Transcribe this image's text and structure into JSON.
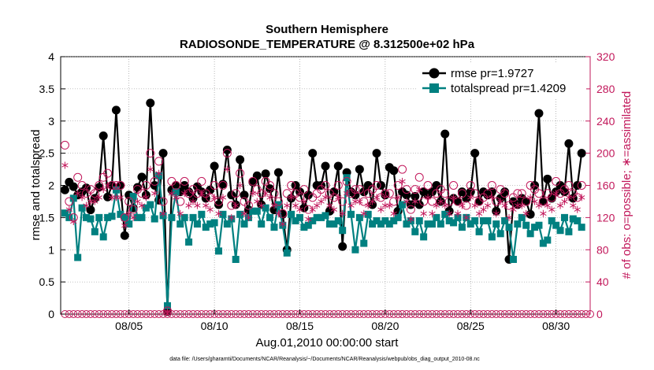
{
  "chart_data": {
    "type": "line",
    "title": "Southern Hemisphere",
    "subtitle": "RADIOSONDE_TEMPERATURE @ 8.312500e+02 hPa",
    "xlabel": "Aug.01,2010 00:00:00 start",
    "ylabel": "rmse and totalspread",
    "ylabel_right": "# of obs: o=possible; ∗=assimilated",
    "footnote": "data file: /Users/gharamti/Documents/NCAR/Reanalysis/~/Documents/NCAR/Reanalysis/webpub/obs_diag_output_2010-08.nc",
    "xlim": [
      1,
      32
    ],
    "ylim": [
      0,
      4
    ],
    "ylim_right": [
      0,
      320
    ],
    "x_ticks": [
      {
        "x": 5,
        "label": "08/05"
      },
      {
        "x": 10,
        "label": "08/10"
      },
      {
        "x": 15,
        "label": "08/15"
      },
      {
        "x": 20,
        "label": "08/20"
      },
      {
        "x": 25,
        "label": "08/25"
      },
      {
        "x": 30,
        "label": "08/30"
      }
    ],
    "y_ticks": [
      "0",
      "0.5",
      "1",
      "1.5",
      "2",
      "2.5",
      "3",
      "3.5",
      "4"
    ],
    "y_ticks_right": [
      "0",
      "40",
      "80",
      "120",
      "160",
      "200",
      "240",
      "280",
      "320"
    ],
    "legend": [
      {
        "name": "rmse pr=1.9727",
        "color": "#000000"
      },
      {
        "name": "totalspread pr=1.4209",
        "color": "#008080"
      }
    ],
    "legend_position": "top-right",
    "series": [
      {
        "name": "rmse",
        "color": "#000000",
        "marker": "circle",
        "values": [
          1.93,
          2.05,
          1.98,
          1.85,
          1.9,
          1.96,
          1.62,
          1.8,
          1.97,
          2.77,
          1.82,
          2.0,
          3.17,
          2.0,
          1.22,
          1.85,
          1.65,
          1.97,
          2.13,
          1.85,
          3.28,
          2.0,
          1.77,
          2.5,
          0.04,
          1.93,
          2.0,
          1.9,
          2.0,
          1.9,
          1.8,
          1.98,
          1.9,
          1.8,
          1.93,
          2.3,
          1.7,
          2.02,
          2.55,
          1.85,
          1.7,
          2.4,
          1.85,
          1.62,
          2.05,
          2.15,
          1.7,
          2.18,
          1.95,
          1.62,
          2.2,
          1.55,
          1.0,
          1.8,
          2.0,
          1.9,
          1.65,
          1.85,
          2.5,
          2.0,
          2.0,
          2.3,
          1.6,
          1.9,
          2.3,
          1.05,
          2.2,
          1.9,
          1.85,
          2.25,
          1.9,
          2.0,
          1.7,
          2.5,
          2.0,
          1.85,
          2.28,
          2.23,
          1.6,
          1.9,
          1.85,
          1.7,
          1.83,
          1.7,
          1.9,
          1.85,
          1.9,
          2.0,
          1.75,
          2.8,
          1.6,
          1.8,
          1.75,
          1.9,
          1.8,
          1.9,
          2.5,
          1.75,
          1.9,
          1.85,
          1.9,
          1.6,
          1.8,
          1.9,
          0.85,
          1.75,
          1.7,
          1.8,
          1.75,
          1.55,
          2.0,
          3.12,
          1.75,
          2.1,
          1.8,
          1.9,
          2.0,
          1.9,
          2.65,
          1.8,
          2.0,
          2.5
        ],
        "marker_interval_days": 0.25
      },
      {
        "name": "totalspread",
        "color": "#008080",
        "marker": "square",
        "values": [
          1.57,
          1.5,
          1.8,
          0.88,
          1.65,
          1.5,
          1.48,
          1.28,
          1.5,
          1.2,
          1.5,
          1.52,
          1.93,
          1.55,
          1.5,
          1.4,
          1.83,
          1.5,
          1.5,
          1.65,
          1.7,
          1.48,
          2.15,
          1.53,
          0.13,
          1.5,
          1.9,
          1.4,
          1.5,
          1.12,
          1.5,
          1.4,
          1.55,
          1.35,
          1.4,
          1.42,
          0.98,
          1.55,
          1.4,
          1.48,
          0.85,
          1.55,
          1.4,
          1.5,
          1.6,
          1.6,
          1.4,
          1.65,
          1.5,
          1.35,
          1.7,
          1.38,
          0.95,
          1.55,
          1.45,
          1.5,
          1.35,
          1.38,
          1.45,
          1.5,
          1.5,
          1.53,
          1.4,
          1.4,
          1.45,
          1.3,
          2.12,
          1.55,
          1.0,
          1.5,
          1.1,
          1.55,
          1.4,
          1.45,
          1.4,
          1.45,
          1.4,
          1.45,
          1.5,
          1.7,
          1.4,
          1.45,
          1.28,
          1.45,
          1.2,
          1.4,
          1.4,
          1.5,
          1.4,
          1.55,
          1.45,
          1.42,
          1.5,
          1.35,
          1.5,
          1.4,
          1.45,
          1.28,
          1.45,
          1.45,
          1.2,
          1.4,
          1.25,
          1.45,
          1.35,
          0.85,
          1.4,
          1.5,
          1.38,
          1.25,
          1.35,
          1.38,
          1.1,
          1.15,
          1.45,
          1.38,
          1.3,
          1.5,
          1.28,
          1.48,
          1.45,
          1.35
        ],
        "marker_interval_days": 0.25
      },
      {
        "name": "possible",
        "color": "#c2185b",
        "marker": "open-circle",
        "axis": "right",
        "values": [
          210,
          140,
          120,
          170,
          160,
          150,
          155,
          150,
          160,
          170,
          175,
          160,
          160,
          160,
          120,
          140,
          130,
          155,
          150,
          160,
          200,
          165,
          190,
          140,
          4,
          165,
          160,
          140,
          165,
          150,
          155,
          150,
          165,
          150,
          145,
          160,
          140,
          160,
          200,
          135,
          150,
          175,
          140,
          135,
          165,
          155,
          150,
          165,
          160,
          150,
          140,
          125,
          150,
          160,
          150,
          145,
          155,
          130,
          145,
          150,
          155,
          160,
          150,
          145,
          160,
          140,
          165,
          150,
          155,
          155,
          140,
          150,
          155,
          160,
          145,
          150,
          150,
          140,
          160,
          180,
          155,
          130,
          155,
          170,
          140,
          160,
          140,
          150,
          155,
          150,
          140,
          160,
          140,
          150,
          135,
          160,
          150,
          140,
          145,
          150,
          160,
          140,
          155,
          150,
          135,
          145,
          150,
          150,
          140,
          160,
          155,
          150,
          140,
          150,
          145,
          165,
          150,
          155,
          160,
          150,
          145,
          160
        ],
        "marker_interval_days": 0.25
      },
      {
        "name": "assimilated",
        "color": "#c2185b",
        "marker": "asterisk",
        "axis": "right",
        "values": [
          185,
          130,
          115,
          150,
          145,
          135,
          140,
          140,
          145,
          155,
          160,
          145,
          145,
          145,
          110,
          125,
          120,
          140,
          135,
          145,
          180,
          150,
          175,
          125,
          3,
          150,
          145,
          125,
          150,
          135,
          140,
          135,
          150,
          135,
          130,
          145,
          125,
          145,
          180,
          120,
          135,
          160,
          125,
          120,
          150,
          140,
          135,
          150,
          145,
          135,
          125,
          112,
          135,
          145,
          135,
          130,
          140,
          118,
          130,
          135,
          140,
          145,
          135,
          130,
          145,
          125,
          150,
          135,
          140,
          140,
          125,
          135,
          140,
          145,
          130,
          135,
          135,
          125,
          145,
          165,
          140,
          118,
          140,
          155,
          125,
          145,
          125,
          135,
          140,
          135,
          125,
          145,
          125,
          135,
          120,
          145,
          135,
          125,
          130,
          135,
          145,
          125,
          140,
          135,
          120,
          130,
          135,
          135,
          125,
          145,
          140,
          135,
          125,
          135,
          130,
          150,
          135,
          140,
          145,
          135,
          130,
          145
        ],
        "marker_interval_days": 0.25
      }
    ]
  }
}
